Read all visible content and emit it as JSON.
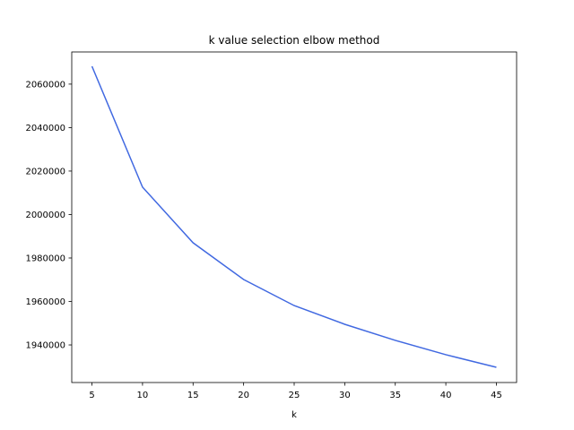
{
  "chart_data": {
    "type": "line",
    "title": "k value selection elbow method",
    "x_label": "k",
    "x": [
      5,
      10,
      15,
      20,
      25,
      30,
      35,
      40,
      45
    ],
    "series": [
      {
        "color": "#4169e1",
        "values": [
          2068200,
          2012600,
          1987000,
          1970100,
          1958100,
          1949500,
          1942100,
          1935500,
          1929700
        ]
      }
    ],
    "xlim": [
      3,
      47
    ],
    "xticks": [
      5,
      10,
      15,
      20,
      25,
      30,
      35,
      40,
      45
    ],
    "ylim": [
      1922700,
      2074800
    ],
    "yticks": [
      1940000,
      1960000,
      1980000,
      2000000,
      2020000,
      2040000,
      2060000
    ],
    "grid": false
  }
}
